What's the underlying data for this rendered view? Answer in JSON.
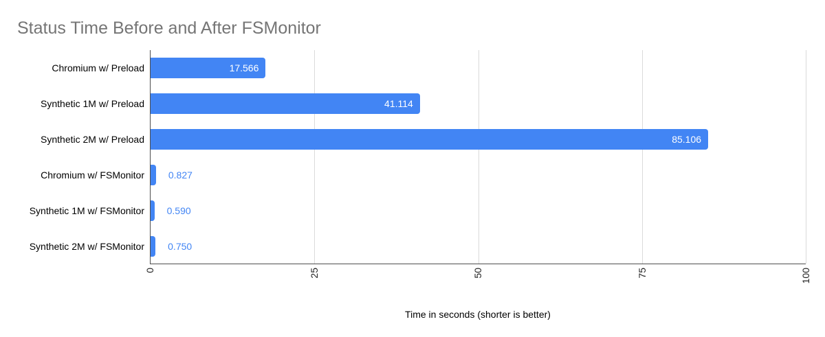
{
  "chart_data": {
    "type": "bar",
    "orientation": "horizontal",
    "title": "Status Time Before and After FSMonitor",
    "xlabel": "Time in seconds (shorter is better)",
    "categories": [
      "Chromium w/ Preload",
      "Synthetic 1M w/ Preload",
      "Synthetic 2M w/ Preload",
      "Chromium w/ FSMonitor",
      "Synthetic 1M w/ FSMonitor",
      "Synthetic 2M w/ FSMonitor"
    ],
    "values": [
      17.566,
      41.114,
      85.106,
      0.827,
      0.59,
      0.75
    ],
    "value_labels": [
      "17.566",
      "41.114",
      "85.106",
      "0.827",
      "0.590",
      "0.750"
    ],
    "xlim": [
      0,
      100
    ],
    "xticks": [
      0,
      25,
      50,
      75,
      100
    ],
    "grid": true,
    "legend": "none",
    "colors": {
      "bar": "#4285f4",
      "value_label_inside": "#ffffff",
      "value_label_outside": "#4285f4",
      "title": "#757575",
      "gridline": "#dadada",
      "axis_line": "#4d4d4d",
      "tick_label": "#222222",
      "category_label": "#000000"
    }
  }
}
